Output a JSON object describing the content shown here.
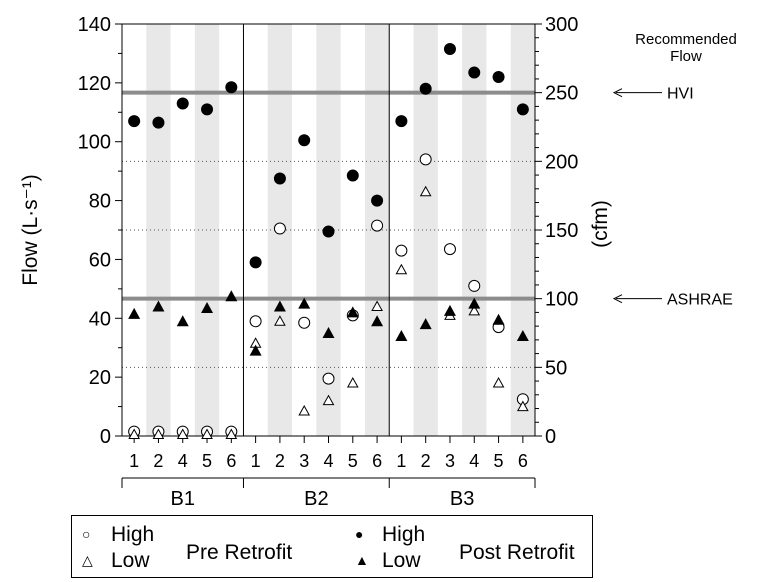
{
  "chart_data": {
    "type": "scatter",
    "title": "",
    "ylabel_left": "Flow (L·s⁻¹)",
    "ylabel_right": "(cfm)",
    "ylim_left": [
      0,
      140
    ],
    "yticks_left": [
      0,
      20,
      40,
      60,
      80,
      100,
      120,
      140
    ],
    "ylim_right": [
      0,
      300
    ],
    "yticks_right": [
      0,
      50,
      100,
      150,
      200,
      250,
      300
    ],
    "grid": "dotted horizontal lines at 50, 150, 200 cfm; alternating shaded columns",
    "groups": [
      {
        "name": "B1",
        "houses": [
          "1",
          "2",
          "4",
          "5",
          "6"
        ]
      },
      {
        "name": "B2",
        "houses": [
          "1",
          "2",
          "3",
          "4",
          "5",
          "6"
        ]
      },
      {
        "name": "B3",
        "houses": [
          "1",
          "2",
          "3",
          "4",
          "5",
          "6"
        ]
      }
    ],
    "reference_lines": [
      {
        "label": "HVI",
        "value_cfm": 250
      },
      {
        "label": "ASHRAE",
        "value_cfm": 100
      }
    ],
    "reference_title": "Recommended Flow",
    "series": [
      {
        "key": "pre_high",
        "name": "High",
        "condition": "Pre Retrofit",
        "marker": "open-circle",
        "values": [
          1.5,
          1.5,
          1.5,
          1.5,
          1.5,
          39,
          70.5,
          38.5,
          19.5,
          41,
          71.5,
          63,
          94,
          63.5,
          51,
          37,
          12.5
        ]
      },
      {
        "key": "pre_low",
        "name": "Low",
        "condition": "Pre Retrofit",
        "marker": "open-triangle",
        "values": [
          0.5,
          0.5,
          0.5,
          0.5,
          0.5,
          31.5,
          39,
          8.5,
          12,
          18,
          44,
          56.5,
          83,
          41,
          42.5,
          18,
          10
        ]
      },
      {
        "key": "post_high",
        "name": "High",
        "condition": "Post Retrofit",
        "marker": "filled-circle",
        "values": [
          107,
          106.5,
          113,
          111,
          118.5,
          59,
          87.5,
          100.5,
          69.5,
          88.5,
          80,
          107,
          118,
          131.5,
          123.5,
          122,
          111
        ]
      },
      {
        "key": "post_low",
        "name": "Low",
        "condition": "Post Retrofit",
        "marker": "filled-triangle",
        "values": [
          41.5,
          44,
          39,
          43.5,
          47.5,
          29,
          44,
          45,
          35,
          42,
          39,
          34,
          38,
          42.5,
          45,
          39.5,
          34
        ]
      }
    ]
  },
  "legend": {
    "high_label": "High",
    "low_label": "Low",
    "pre_label": "Pre Retrofit",
    "post_label": "Post Retrofit"
  }
}
